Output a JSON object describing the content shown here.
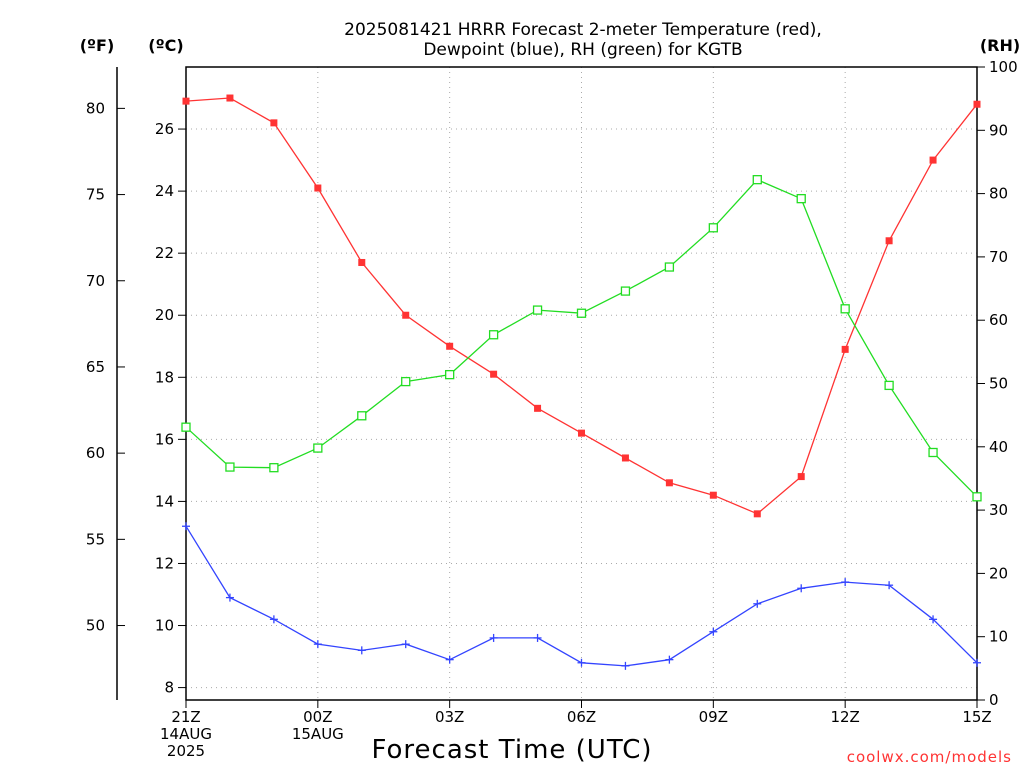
{
  "chart_data": {
    "type": "line",
    "title_lines": [
      "2025081421 HRRR Forecast 2-meter Temperature (red),",
      "Dewpoint (blue), RH (green) for KGTB"
    ],
    "xlabel": "Forecast Time (UTC)",
    "credit": "coolwx.com/models",
    "units": {
      "fahrenheit": "(ºF)",
      "celsius": "(ºC)",
      "rh": "(RH)"
    },
    "x_range": [
      0,
      18
    ],
    "x_ticks": [
      {
        "x": 0,
        "lines": [
          "21Z",
          "14AUG",
          "2025"
        ]
      },
      {
        "x": 3,
        "lines": [
          "00Z",
          "15AUG"
        ]
      },
      {
        "x": 6,
        "lines": [
          "03Z"
        ]
      },
      {
        "x": 9,
        "lines": [
          "06Z"
        ]
      },
      {
        "x": 12,
        "lines": [
          "09Z"
        ]
      },
      {
        "x": 15,
        "lines": [
          "12Z"
        ]
      },
      {
        "x": 18,
        "lines": [
          "15Z"
        ]
      }
    ],
    "celsius_axis": {
      "range": [
        7.6,
        28.0
      ],
      "ticks": [
        8,
        10,
        12,
        14,
        16,
        18,
        20,
        22,
        24,
        26
      ]
    },
    "fahrenheit_axis": {
      "ticks": [
        50,
        55,
        60,
        65,
        70,
        75,
        80
      ]
    },
    "rh_axis": {
      "range": [
        0,
        100
      ],
      "ticks": [
        0,
        10,
        20,
        30,
        40,
        50,
        60,
        70,
        80,
        90,
        100
      ]
    },
    "grid": true,
    "series": [
      {
        "name": "Temperature",
        "axis": "celsius",
        "color": "#ff3333",
        "marker": "filled-square",
        "x": [
          0,
          1,
          2,
          3,
          4,
          5,
          6,
          7,
          8,
          9,
          10,
          11,
          12,
          13,
          14,
          15,
          16,
          17,
          18
        ],
        "values": [
          26.9,
          27.0,
          26.2,
          24.1,
          21.7,
          20.0,
          19.0,
          18.1,
          17.0,
          16.2,
          15.4,
          14.6,
          14.2,
          13.6,
          14.8,
          18.9,
          22.4,
          25.0,
          26.8
        ]
      },
      {
        "name": "Dewpoint",
        "axis": "celsius",
        "color": "#3344ff",
        "marker": "plus",
        "x": [
          0,
          1,
          2,
          3,
          4,
          5,
          6,
          7,
          8,
          9,
          10,
          11,
          12,
          13,
          14,
          15,
          16,
          17,
          18
        ],
        "values": [
          13.2,
          10.9,
          10.2,
          9.4,
          9.2,
          9.4,
          8.9,
          9.6,
          9.6,
          8.8,
          8.7,
          8.9,
          9.8,
          10.7,
          11.2,
          11.4,
          11.3,
          10.2,
          8.8
        ]
      },
      {
        "name": "RH",
        "axis": "rh",
        "color": "#22dd22",
        "marker": "open-square",
        "x": [
          0,
          1,
          2,
          3,
          4,
          5,
          6,
          7,
          8,
          9,
          10,
          11,
          12,
          13,
          14,
          15,
          16,
          17,
          18
        ],
        "values": [
          43.1,
          36.8,
          36.7,
          39.8,
          44.9,
          50.3,
          51.4,
          57.7,
          61.6,
          61.1,
          64.6,
          68.4,
          74.6,
          82.2,
          79.2,
          61.8,
          49.7,
          39.1,
          32.1
        ]
      }
    ]
  }
}
